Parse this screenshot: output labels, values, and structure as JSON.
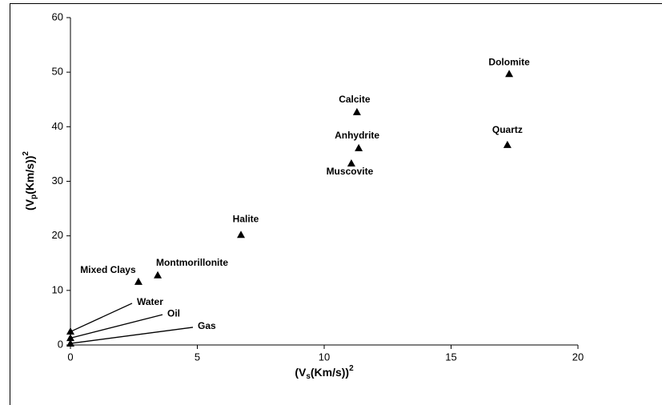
{
  "chart_data": {
    "type": "scatter",
    "xlabel": [
      "(V",
      "s",
      "(Km/s))",
      "2"
    ],
    "ylabel": [
      "(V",
      "p",
      "(Km/s))",
      "2"
    ],
    "x": [
      17.29,
      11.29,
      11.36,
      11.07,
      17.22,
      6.72,
      3.44,
      2.68,
      0,
      0,
      0
    ],
    "values": [
      49.7,
      42.7,
      36.1,
      33.3,
      36.7,
      20.2,
      12.8,
      11.6,
      2.5,
      1.3,
      0.3
    ],
    "labels": [
      "Dolomite",
      "Calcite",
      "Anhydrite",
      "Muscovite",
      "Quartz",
      "Halite",
      "Montmorillonite",
      "Mixed Clays",
      "Water",
      "Oil",
      "Gas"
    ],
    "color": "#000000",
    "xlim": [
      0,
      20
    ],
    "xticks": [
      0,
      5,
      10,
      15,
      20
    ],
    "ylim": [
      0,
      60
    ],
    "yticks": [
      0,
      10,
      20,
      30,
      40,
      50,
      60
    ]
  }
}
